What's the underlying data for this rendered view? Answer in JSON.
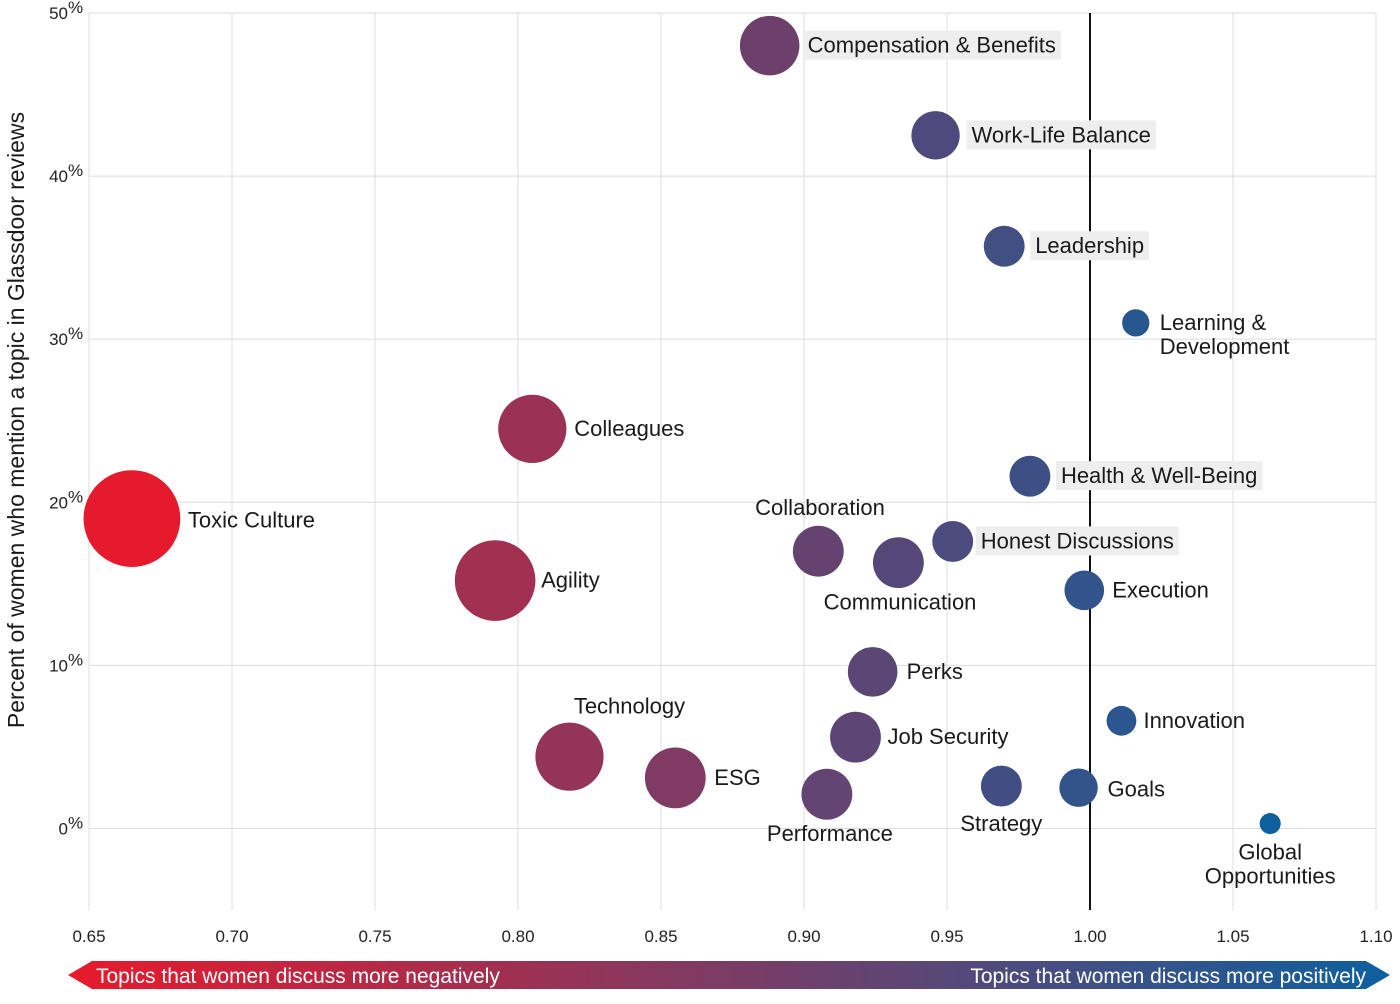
{
  "chart_data": {
    "type": "scatter",
    "title": "",
    "xlabel": "",
    "ylabel": "Percent of women who mention a topic in Glassdoor reviews",
    "xlim": [
      0.65,
      1.1
    ],
    "ylim": [
      -5,
      50
    ],
    "x_ticks": [
      "0.65",
      "0.70",
      "0.75",
      "0.80",
      "0.85",
      "0.90",
      "0.95",
      "1.00",
      "1.05",
      "1.10"
    ],
    "y_ticks": [
      "0",
      "10",
      "20",
      "30",
      "40",
      "50"
    ],
    "y_tick_suffix": "%",
    "grid": true,
    "reference_line_x": 1.0,
    "color_low": "#e8192c",
    "color_high": "#0e5f9e",
    "direction_banner": {
      "left_text": "Topics that women discuss more negatively",
      "right_text": "Topics that women discuss more positively",
      "left_color": "#e8192c",
      "right_color": "#0e5f9e"
    },
    "points": [
      {
        "label": "Compensation & Benefits",
        "x": 0.888,
        "y": 48.0,
        "size": 0.48,
        "highlight": true
      },
      {
        "label": "Work-Life Balance",
        "x": 0.946,
        "y": 42.5,
        "size": 0.39,
        "highlight": true
      },
      {
        "label": "Leadership",
        "x": 0.97,
        "y": 35.7,
        "size": 0.33,
        "highlight": true
      },
      {
        "label": "Learning & Development",
        "x": 1.016,
        "y": 31.0,
        "size": 0.22,
        "highlight": false
      },
      {
        "label": "Colleagues",
        "x": 0.805,
        "y": 24.5,
        "size": 0.55,
        "highlight": false
      },
      {
        "label": "Health & Well-Being",
        "x": 0.979,
        "y": 21.6,
        "size": 0.33,
        "highlight": true
      },
      {
        "label": "Toxic Culture",
        "x": 0.665,
        "y": 19.0,
        "size": 0.78,
        "highlight": false
      },
      {
        "label": "Collaboration",
        "x": 0.905,
        "y": 17.0,
        "size": 0.41,
        "highlight": false
      },
      {
        "label": "Honest Discussions",
        "x": 0.952,
        "y": 17.6,
        "size": 0.33,
        "highlight": true
      },
      {
        "label": "Communication",
        "x": 0.933,
        "y": 16.3,
        "size": 0.41,
        "highlight": false
      },
      {
        "label": "Agility",
        "x": 0.792,
        "y": 15.2,
        "size": 0.65,
        "highlight": false
      },
      {
        "label": "Execution",
        "x": 0.998,
        "y": 14.6,
        "size": 0.32,
        "highlight": false
      },
      {
        "label": "Perks",
        "x": 0.924,
        "y": 9.6,
        "size": 0.4,
        "highlight": false
      },
      {
        "label": "Innovation",
        "x": 1.011,
        "y": 6.6,
        "size": 0.24,
        "highlight": false
      },
      {
        "label": "Job Security",
        "x": 0.918,
        "y": 5.6,
        "size": 0.41,
        "highlight": false
      },
      {
        "label": "Technology",
        "x": 0.818,
        "y": 4.4,
        "size": 0.55,
        "highlight": false
      },
      {
        "label": "ESG",
        "x": 0.855,
        "y": 3.1,
        "size": 0.49,
        "highlight": false
      },
      {
        "label": "Strategy",
        "x": 0.969,
        "y": 2.6,
        "size": 0.33,
        "highlight": false
      },
      {
        "label": "Goals",
        "x": 0.996,
        "y": 2.5,
        "size": 0.31,
        "highlight": false
      },
      {
        "label": "Performance",
        "x": 0.908,
        "y": 2.1,
        "size": 0.41,
        "highlight": false
      },
      {
        "label": "Global Opportunities",
        "x": 1.063,
        "y": 0.3,
        "size": 0.17,
        "highlight": false
      }
    ]
  }
}
